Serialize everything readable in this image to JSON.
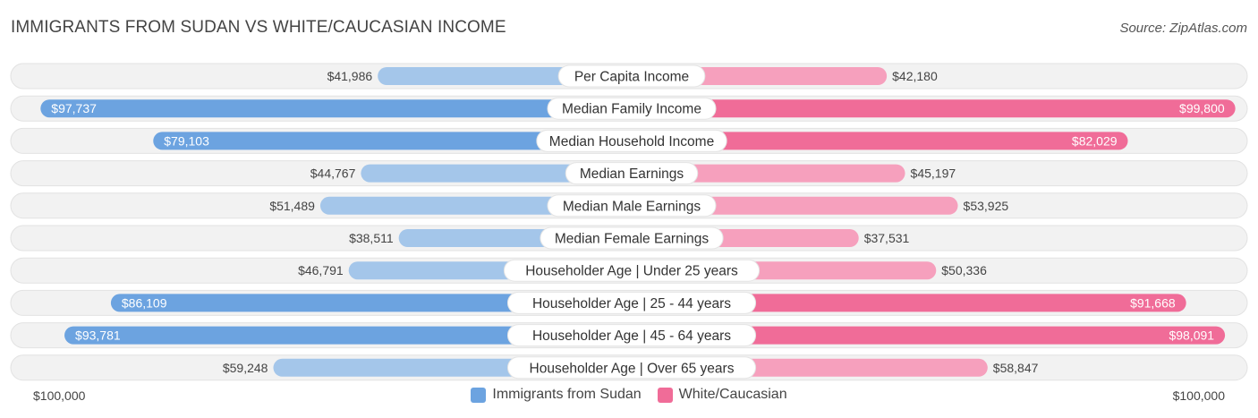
{
  "header": {
    "title": "IMMIGRANTS FROM SUDAN VS WHITE/CAUCASIAN INCOME",
    "source": "Source: ZipAtlas.com"
  },
  "axis": {
    "left_label": "$100,000",
    "right_label": "$100,000"
  },
  "legend": {
    "left": {
      "label": "Immigrants from Sudan",
      "color": "#6ca3e0"
    },
    "right": {
      "label": "White/Caucasian",
      "color": "#f06c98"
    }
  },
  "chart_data": {
    "type": "bar",
    "orientation": "diverging-horizontal",
    "max": 100000,
    "categories": [
      "Per Capita Income",
      "Median Family Income",
      "Median Household Income",
      "Median Earnings",
      "Median Male Earnings",
      "Median Female Earnings",
      "Householder Age | Under 25 years",
      "Householder Age | 25 - 44 years",
      "Householder Age | 45 - 64 years",
      "Householder Age | Over 65 years"
    ],
    "series": [
      {
        "name": "Immigrants from Sudan",
        "values": [
          41986,
          97737,
          79103,
          44767,
          51489,
          38511,
          46791,
          86109,
          93781,
          59248
        ],
        "labels": [
          "$41,986",
          "$97,737",
          "$79,103",
          "$44,767",
          "$51,489",
          "$38,511",
          "$46,791",
          "$86,109",
          "$93,781",
          "$59,248"
        ]
      },
      {
        "name": "White/Caucasian",
        "values": [
          42180,
          99800,
          82029,
          45197,
          53925,
          37531,
          50336,
          91668,
          98091,
          58847
        ],
        "labels": [
          "$42,180",
          "$99,800",
          "$82,029",
          "$45,197",
          "$53,925",
          "$37,531",
          "$50,336",
          "$91,668",
          "$98,091",
          "$58,847"
        ]
      }
    ],
    "colors": {
      "left_strong": "#6ca3e0",
      "left_light": "#a4c6ea",
      "right_strong": "#f06c98",
      "right_light": "#f6a0bd"
    }
  }
}
